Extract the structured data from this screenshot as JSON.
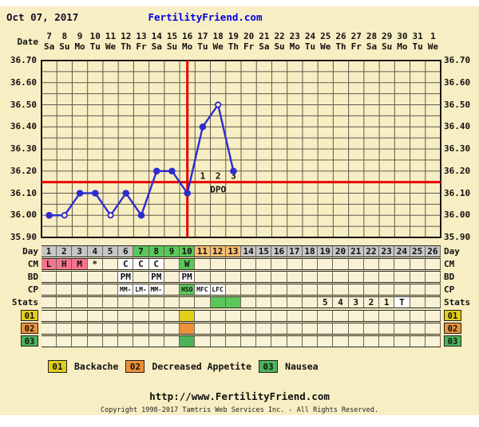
{
  "header": {
    "date": "Oct 07, 2017",
    "brand": "FertilityFriend.com"
  },
  "axis": {
    "date_label": "Date",
    "dates": [
      "7",
      "8",
      "9",
      "10",
      "11",
      "12",
      "13",
      "14",
      "15",
      "16",
      "17",
      "18",
      "19",
      "20",
      "21",
      "22",
      "23",
      "24",
      "25",
      "26",
      "27",
      "28",
      "29",
      "30",
      "31",
      "1"
    ],
    "weekdays": [
      "Sa",
      "Su",
      "Mo",
      "Tu",
      "We",
      "Th",
      "Fr",
      "Sa",
      "Su",
      "Mo",
      "Tu",
      "We",
      "Th",
      "Fr",
      "Sa",
      "Su",
      "Mo",
      "Tu",
      "We",
      "Th",
      "Fr",
      "Sa",
      "Su",
      "Mo",
      "Tu",
      "We"
    ],
    "y_labels": [
      "36.70",
      "36.60",
      "36.50",
      "36.40",
      "36.30",
      "36.20",
      "36.10",
      "36.00",
      "35.90"
    ]
  },
  "chart_data": {
    "type": "line",
    "title": "Basal body temperature chart (Celsius)",
    "x_days": [
      1,
      2,
      3,
      4,
      5,
      6,
      7,
      8,
      9,
      10,
      11,
      12,
      13
    ],
    "values": [
      36.0,
      36.0,
      36.1,
      36.1,
      36.0,
      36.1,
      36.0,
      36.2,
      36.2,
      36.1,
      36.4,
      36.5,
      36.2
    ],
    "open_marker_days": [
      2,
      5,
      12
    ],
    "coverline": 36.15,
    "ovulation_line_day": 10,
    "dpo": [
      {
        "day": 11,
        "label": "1"
      },
      {
        "day": 12,
        "label": "2"
      },
      {
        "day": 13,
        "label": "3"
      }
    ],
    "dpo_caption": "DPO",
    "ylim": [
      35.9,
      36.7
    ],
    "ytick_step": 0.1,
    "grid_minor_step": 0.05,
    "total_day_columns": 26,
    "grid": true
  },
  "colors": {
    "gray": "#C6C6C6",
    "green": "#5BC75B",
    "green_badge": "#4CB35A",
    "orange": "#F5BE72",
    "orange_deep": "#EC9138",
    "pink": "#F4758D",
    "yellow": "#E3CE1A",
    "white": "#FFFFFF",
    "red": "#E80000",
    "blue": "#2D2DCE",
    "brand": "#0000E6",
    "cream": "#F8EEC3",
    "cell_cream": "#F9F2D6"
  },
  "table": {
    "rows": [
      {
        "id": "day",
        "label": "Day",
        "cells": [
          {
            "day": 1,
            "text": "1",
            "bg": "gray"
          },
          {
            "day": 2,
            "text": "2",
            "bg": "gray"
          },
          {
            "day": 3,
            "text": "3",
            "bg": "gray"
          },
          {
            "day": 4,
            "text": "4",
            "bg": "gray"
          },
          {
            "day": 5,
            "text": "5",
            "bg": "gray"
          },
          {
            "day": 6,
            "text": "6",
            "bg": "gray"
          },
          {
            "day": 7,
            "text": "7",
            "bg": "green"
          },
          {
            "day": 8,
            "text": "8",
            "bg": "green"
          },
          {
            "day": 9,
            "text": "9",
            "bg": "green"
          },
          {
            "day": 10,
            "text": "10",
            "bg": "green"
          },
          {
            "day": 11,
            "text": "11",
            "bg": "orange"
          },
          {
            "day": 12,
            "text": "12",
            "bg": "orange"
          },
          {
            "day": 13,
            "text": "13",
            "bg": "orange"
          },
          {
            "day": 14,
            "text": "14",
            "bg": "gray"
          },
          {
            "day": 15,
            "text": "15",
            "bg": "gray"
          },
          {
            "day": 16,
            "text": "16",
            "bg": "gray"
          },
          {
            "day": 17,
            "text": "17",
            "bg": "gray"
          },
          {
            "day": 18,
            "text": "18",
            "bg": "gray"
          },
          {
            "day": 19,
            "text": "19",
            "bg": "gray"
          },
          {
            "day": 20,
            "text": "20",
            "bg": "gray"
          },
          {
            "day": 21,
            "text": "21",
            "bg": "gray"
          },
          {
            "day": 22,
            "text": "22",
            "bg": "gray"
          },
          {
            "day": 23,
            "text": "23",
            "bg": "gray"
          },
          {
            "day": 24,
            "text": "24",
            "bg": "gray"
          },
          {
            "day": 25,
            "text": "25",
            "bg": "gray"
          },
          {
            "day": 26,
            "text": "26",
            "bg": "gray"
          }
        ]
      },
      {
        "id": "cm",
        "label": "CM",
        "cells": [
          {
            "day": 1,
            "text": "L",
            "bg": "pink"
          },
          {
            "day": 2,
            "text": "H",
            "bg": "pink"
          },
          {
            "day": 3,
            "text": "M",
            "bg": "pink"
          },
          {
            "day": 4,
            "text": "*"
          },
          {
            "day": 6,
            "text": "C",
            "bg": "white"
          },
          {
            "day": 7,
            "text": "C",
            "bg": "white"
          },
          {
            "day": 8,
            "text": "C",
            "bg": "white"
          },
          {
            "day": 10,
            "text": "W",
            "bg": "green"
          }
        ]
      },
      {
        "id": "bd",
        "label": "BD",
        "cells": [
          {
            "day": 6,
            "text": "PM",
            "bg": "white"
          },
          {
            "day": 8,
            "text": "PM",
            "bg": "white"
          },
          {
            "day": 10,
            "text": "PM",
            "bg": "white"
          }
        ]
      },
      {
        "id": "cp",
        "label": "CP",
        "small": true,
        "cells": [
          {
            "day": 6,
            "text": "MM-",
            "bg": "white"
          },
          {
            "day": 7,
            "text": "LM-",
            "bg": "white"
          },
          {
            "day": 8,
            "text": "MM-",
            "bg": "white"
          },
          {
            "day": 10,
            "text": "HSO",
            "bg": "green"
          },
          {
            "day": 11,
            "text": "MFC",
            "bg": "white"
          },
          {
            "day": 12,
            "text": "LFC",
            "bg": "white"
          }
        ]
      },
      {
        "id": "stats",
        "label": "Stats",
        "cells": [
          {
            "day": 12,
            "text": "",
            "bg": "green"
          },
          {
            "day": 13,
            "text": "",
            "bg": "green"
          },
          {
            "day": 19,
            "text": "5"
          },
          {
            "day": 20,
            "text": "4"
          },
          {
            "day": 21,
            "text": "3"
          },
          {
            "day": 22,
            "text": "2"
          },
          {
            "day": 23,
            "text": "1"
          },
          {
            "day": 24,
            "text": "T",
            "bg": "white"
          }
        ]
      },
      {
        "id": "s01",
        "label": "01",
        "badge": "yellow",
        "cells": [
          {
            "day": 10,
            "text": "",
            "bg": "yellow"
          }
        ]
      },
      {
        "id": "s02",
        "label": "02",
        "badge": "orange_deep",
        "cells": [
          {
            "day": 10,
            "text": "",
            "bg": "orange_deep"
          }
        ]
      },
      {
        "id": "s03",
        "label": "03",
        "badge": "green_badge",
        "cells": [
          {
            "day": 10,
            "text": "",
            "bg": "green_badge"
          }
        ]
      }
    ]
  },
  "legend": [
    {
      "code": "01",
      "label": "Backache",
      "color": "yellow"
    },
    {
      "code": "02",
      "label": "Decreased Appetite",
      "color": "orange_deep"
    },
    {
      "code": "03",
      "label": "Nausea",
      "color": "green_badge"
    }
  ],
  "footer": {
    "url": "http://www.FertilityFriend.com",
    "copyright": "Copyright 1998-2017 Tamtris Web Services Inc. - All Rights Reserved."
  }
}
